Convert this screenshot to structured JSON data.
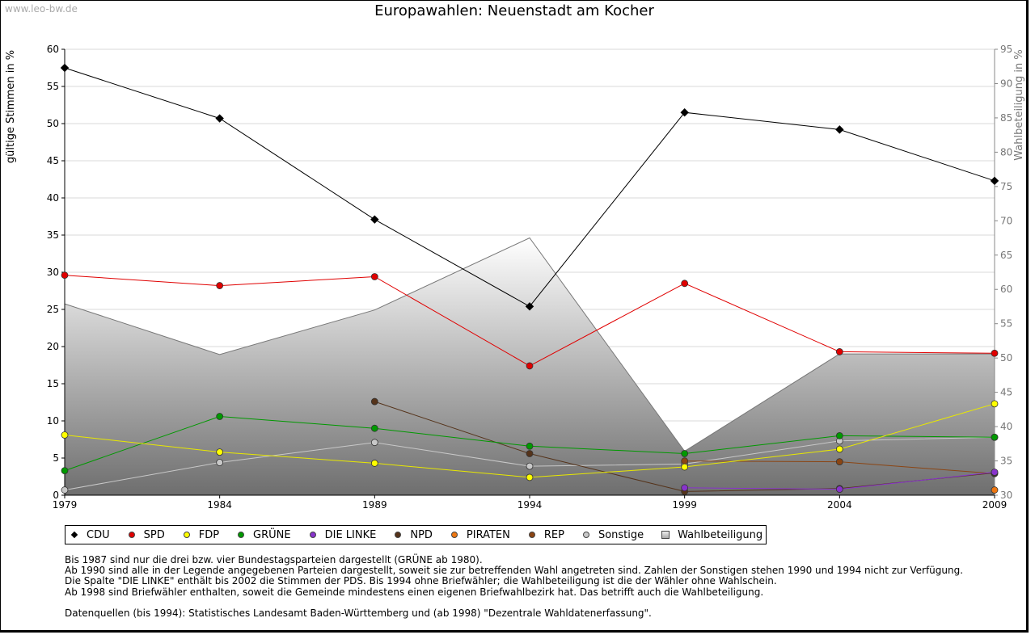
{
  "watermark": "www.leo-bw.de",
  "title": "Europawahlen: Neuenstadt am Kocher",
  "chart_data": {
    "type": "line",
    "title": "Europawahlen: Neuenstadt am Kocher",
    "ylabel": "gültige Stimmen in %",
    "y2label": "Wahlbeteiligung in %",
    "categories": [
      "1979",
      "1984",
      "1989",
      "1994",
      "1999",
      "2004",
      "2009"
    ],
    "ylim": [
      0,
      60
    ],
    "yticks": [
      0,
      5,
      10,
      15,
      20,
      25,
      30,
      35,
      40,
      45,
      50,
      55,
      60
    ],
    "y2lim": [
      30,
      95
    ],
    "y2ticks": [
      30,
      35,
      40,
      45,
      50,
      55,
      60,
      65,
      70,
      75,
      80,
      85,
      90,
      95
    ],
    "area": {
      "name": "Wahlbeteiligung",
      "values": [
        57.9,
        50.5,
        57.0,
        67.5,
        36.4,
        50.6,
        50.6
      ]
    },
    "series": [
      {
        "name": "CDU",
        "color": "#000000",
        "marker": "diamond",
        "values": [
          57.5,
          50.7,
          37.1,
          25.4,
          51.5,
          49.2,
          42.3
        ]
      },
      {
        "name": "SPD",
        "color": "#e00000",
        "marker": "circle",
        "values": [
          29.6,
          28.2,
          29.4,
          17.4,
          28.5,
          19.3,
          19.1
        ]
      },
      {
        "name": "FDP",
        "color": "#ffff00",
        "stroke": "#e8e800",
        "marker": "circle",
        "values": [
          8.1,
          5.8,
          4.3,
          2.4,
          3.8,
          6.2,
          12.3
        ]
      },
      {
        "name": "GRÜNE",
        "color": "#009900",
        "marker": "circle",
        "values": [
          3.3,
          10.6,
          9.0,
          6.6,
          5.6,
          8.0,
          7.8
        ]
      },
      {
        "name": "DIE LINKE",
        "color": "#8833cc",
        "marker": "circle",
        "values": [
          null,
          null,
          null,
          null,
          1.0,
          0.8,
          3.1
        ]
      },
      {
        "name": "NPD",
        "color": "#55331a",
        "marker": "circle",
        "values": [
          null,
          null,
          12.6,
          5.6,
          0.5,
          0.9,
          3.0
        ]
      },
      {
        "name": "PIRATEN",
        "color": "#ee7711",
        "marker": "circle",
        "values": [
          null,
          null,
          null,
          null,
          null,
          null,
          0.7
        ]
      },
      {
        "name": "REP",
        "color": "#8b4513",
        "marker": "circle",
        "values": [
          null,
          null,
          null,
          null,
          4.6,
          4.5,
          2.9
        ]
      },
      {
        "name": "Sonstige",
        "color": "#c8c8c8",
        "marker": "circle",
        "values": [
          0.7,
          4.4,
          7.1,
          3.9,
          4.2,
          7.3,
          7.8
        ]
      }
    ]
  },
  "legend": [
    {
      "label": "CDU",
      "color": "#000000",
      "shape": "diamond"
    },
    {
      "label": "SPD",
      "color": "#e00000",
      "shape": "circle"
    },
    {
      "label": "FDP",
      "color": "#ffff00",
      "shape": "circle"
    },
    {
      "label": "GRÜNE",
      "color": "#009900",
      "shape": "circle"
    },
    {
      "label": "DIE LINKE",
      "color": "#8833cc",
      "shape": "circle"
    },
    {
      "label": "NPD",
      "color": "#55331a",
      "shape": "circle"
    },
    {
      "label": "PIRATEN",
      "color": "#ee7711",
      "shape": "circle"
    },
    {
      "label": "REP",
      "color": "#8b4513",
      "shape": "circle"
    },
    {
      "label": "Sonstige",
      "color": "#c8c8c8",
      "shape": "circle"
    },
    {
      "label": "Wahlbeteiligung",
      "color": "#bbbbbb",
      "shape": "square"
    }
  ],
  "notes": {
    "line1": "Bis 1987 sind nur die drei bzw. vier Bundestagsparteien dargestellt (GRÜNE ab 1980).",
    "line2": "Ab 1990 sind alle in der Legende angegebenen Parteien dargestellt, soweit sie zur betreffenden Wahl angetreten sind. Zahlen der Sonstigen stehen 1990 und 1994 nicht zur Verfügung.",
    "line3": "Die Spalte \"DIE LINKE\" enthält bis 2002 die Stimmen der PDS. Bis 1994 ohne Briefwähler; die Wahlbeteiligung ist die der Wähler ohne Wahlschein.",
    "line4": "Ab 1998 sind Briefwähler enthalten, soweit die Gemeinde mindestens einen eigenen Briefwahlbezirk hat. Das betrifft auch die Wahlbeteiligung.",
    "sources": "Datenquellen (bis 1994): Statistisches Landesamt Baden-Württemberg und (ab 1998) \"Dezentrale Wahldatenerfassung\"."
  }
}
